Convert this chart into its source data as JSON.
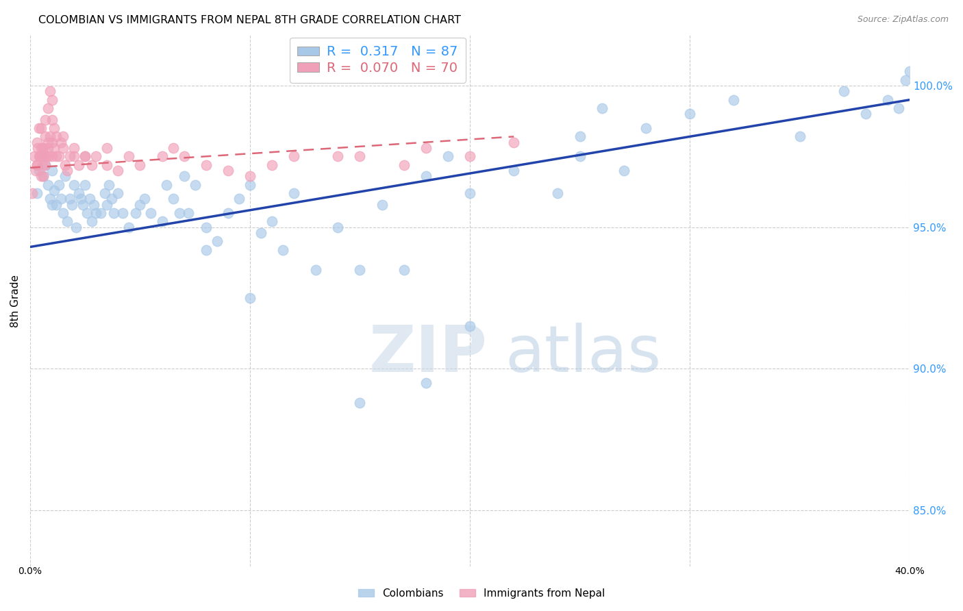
{
  "title": "COLOMBIAN VS IMMIGRANTS FROM NEPAL 8TH GRADE CORRELATION CHART",
  "source": "Source: ZipAtlas.com",
  "ylabel": "8th Grade",
  "xlim": [
    0.0,
    40.0
  ],
  "ylim": [
    83.0,
    101.8
  ],
  "yticks": [
    85.0,
    90.0,
    95.0,
    100.0
  ],
  "ytick_labels": [
    "85.0%",
    "90.0%",
    "95.0%",
    "100.0%"
  ],
  "blue_R": 0.317,
  "blue_N": 87,
  "pink_R": 0.07,
  "pink_N": 70,
  "blue_color": "#a8c8e8",
  "pink_color": "#f0a0b8",
  "blue_line_color": "#2244aa",
  "pink_line_color": "#dd6677",
  "background_color": "#ffffff",
  "grid_color": "#cccccc",
  "legend_label_blue": "Colombians",
  "legend_label_pink": "Immigrants from Nepal",
  "blue_line_x": [
    0.0,
    40.0
  ],
  "blue_line_y": [
    94.3,
    99.5
  ],
  "pink_line_x": [
    0.0,
    22.0
  ],
  "pink_line_y": [
    97.1,
    98.2
  ],
  "blue_scatter_x": [
    0.3,
    0.4,
    0.5,
    0.6,
    0.7,
    0.8,
    0.9,
    1.0,
    1.0,
    1.1,
    1.2,
    1.3,
    1.4,
    1.5,
    1.6,
    1.7,
    1.8,
    1.9,
    2.0,
    2.1,
    2.2,
    2.3,
    2.4,
    2.5,
    2.6,
    2.7,
    2.8,
    2.9,
    3.0,
    3.2,
    3.4,
    3.5,
    3.6,
    3.7,
    3.8,
    4.0,
    4.2,
    4.5,
    4.8,
    5.0,
    5.2,
    5.5,
    6.0,
    6.2,
    6.5,
    6.8,
    7.0,
    7.2,
    7.5,
    8.0,
    8.5,
    9.0,
    9.5,
    10.0,
    10.5,
    11.0,
    11.5,
    12.0,
    13.0,
    14.0,
    15.0,
    16.0,
    17.0,
    18.0,
    19.0,
    20.0,
    22.0,
    24.0,
    25.0,
    26.0,
    27.0,
    28.0,
    30.0,
    32.0,
    35.0,
    37.0,
    38.0,
    39.0,
    39.5,
    39.8,
    40.0,
    25.0,
    20.0,
    18.0,
    15.0,
    10.0,
    8.0
  ],
  "blue_scatter_y": [
    96.2,
    97.0,
    97.5,
    96.8,
    97.2,
    96.5,
    96.0,
    95.8,
    97.0,
    96.3,
    95.8,
    96.5,
    96.0,
    95.5,
    96.8,
    95.2,
    96.0,
    95.8,
    96.5,
    95.0,
    96.2,
    96.0,
    95.8,
    96.5,
    95.5,
    96.0,
    95.2,
    95.8,
    95.5,
    95.5,
    96.2,
    95.8,
    96.5,
    96.0,
    95.5,
    96.2,
    95.5,
    95.0,
    95.5,
    95.8,
    96.0,
    95.5,
    95.2,
    96.5,
    96.0,
    95.5,
    96.8,
    95.5,
    96.5,
    95.0,
    94.5,
    95.5,
    96.0,
    96.5,
    94.8,
    95.2,
    94.2,
    96.2,
    93.5,
    95.0,
    93.5,
    95.8,
    93.5,
    96.8,
    97.5,
    96.2,
    97.0,
    96.2,
    97.5,
    99.2,
    97.0,
    98.5,
    99.0,
    99.5,
    98.2,
    99.8,
    99.0,
    99.5,
    99.2,
    100.2,
    100.5,
    98.2,
    91.5,
    89.5,
    88.8,
    92.5,
    94.2
  ],
  "pink_scatter_x": [
    0.1,
    0.2,
    0.25,
    0.3,
    0.3,
    0.35,
    0.4,
    0.4,
    0.45,
    0.5,
    0.5,
    0.5,
    0.55,
    0.6,
    0.6,
    0.65,
    0.7,
    0.7,
    0.7,
    0.75,
    0.8,
    0.8,
    0.85,
    0.9,
    0.9,
    1.0,
    1.0,
    1.0,
    1.1,
    1.1,
    1.2,
    1.2,
    1.3,
    1.4,
    1.5,
    1.6,
    1.7,
    1.8,
    2.0,
    2.2,
    2.5,
    2.8,
    3.0,
    3.5,
    4.0,
    5.0,
    6.0,
    6.5,
    7.0,
    8.0,
    9.0,
    10.0,
    11.0,
    12.0,
    14.0,
    15.0,
    17.0,
    18.0,
    20.0,
    22.0,
    0.3,
    0.5,
    0.6,
    0.8,
    1.0,
    1.5,
    2.0,
    2.5,
    3.5,
    4.5
  ],
  "pink_scatter_y": [
    96.2,
    97.5,
    97.0,
    97.2,
    98.0,
    97.8,
    97.5,
    98.5,
    97.5,
    97.8,
    96.8,
    98.5,
    97.2,
    96.8,
    97.8,
    97.5,
    97.2,
    98.2,
    98.8,
    97.5,
    97.8,
    99.2,
    97.5,
    98.2,
    99.8,
    98.0,
    98.8,
    99.5,
    97.8,
    98.5,
    98.2,
    97.5,
    97.5,
    98.0,
    97.8,
    97.2,
    97.0,
    97.5,
    97.5,
    97.2,
    97.5,
    97.2,
    97.5,
    97.2,
    97.0,
    97.2,
    97.5,
    97.8,
    97.5,
    97.2,
    97.0,
    96.8,
    97.2,
    97.5,
    97.5,
    97.5,
    97.2,
    97.8,
    97.5,
    98.0,
    97.2,
    97.5,
    97.8,
    98.0,
    97.5,
    98.2,
    97.8,
    97.5,
    97.8,
    97.5
  ]
}
